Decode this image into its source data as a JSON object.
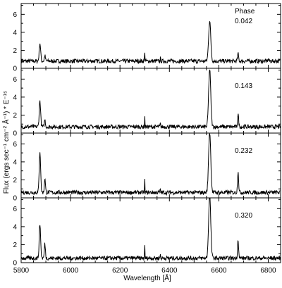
{
  "chart_data": {
    "type": "line",
    "xlabel": "Wavelength [Å]",
    "ylabel": "Flux (ergs sec⁻¹ cm⁻² Å⁻¹) * E⁻¹⁵",
    "xlim": [
      5800,
      6850
    ],
    "x_ticks": [
      5800,
      6000,
      6200,
      6400,
      6600,
      6800
    ],
    "ylim": [
      0,
      7.2
    ],
    "y_ticks": [
      0,
      2,
      4,
      6
    ],
    "legend_header": "Phase",
    "panels": [
      {
        "phase": "0.042",
        "continuum": 0.8,
        "features": [
          {
            "x": 5876,
            "y": 2.8
          },
          {
            "x": 5896,
            "y": 1.4
          },
          {
            "x": 6300,
            "y": 2.3
          },
          {
            "x": 6363,
            "y": 1.2
          },
          {
            "x": 6563,
            "y": 5.3
          },
          {
            "x": 6678,
            "y": 1.6
          },
          {
            "x": 6800,
            "y": 1.0
          }
        ]
      },
      {
        "phase": "0.143",
        "continuum": 0.7,
        "features": [
          {
            "x": 5876,
            "y": 3.6
          },
          {
            "x": 5896,
            "y": 1.5
          },
          {
            "x": 6300,
            "y": 2.2
          },
          {
            "x": 6363,
            "y": 1.2
          },
          {
            "x": 6563,
            "y": 7.1
          },
          {
            "x": 6678,
            "y": 2.1
          }
        ]
      },
      {
        "phase": "0.232",
        "continuum": 0.6,
        "features": [
          {
            "x": 5876,
            "y": 5.2
          },
          {
            "x": 5896,
            "y": 2.2
          },
          {
            "x": 6300,
            "y": 2.4
          },
          {
            "x": 6363,
            "y": 1.2
          },
          {
            "x": 6563,
            "y": 7.5
          },
          {
            "x": 6678,
            "y": 3.0
          }
        ]
      },
      {
        "phase": "0.320",
        "continuum": 0.5,
        "features": [
          {
            "x": 5876,
            "y": 4.3
          },
          {
            "x": 5896,
            "y": 2.1
          },
          {
            "x": 6300,
            "y": 2.3
          },
          {
            "x": 6363,
            "y": 1.1
          },
          {
            "x": 6563,
            "y": 7.5
          },
          {
            "x": 6678,
            "y": 2.6
          }
        ]
      }
    ]
  }
}
